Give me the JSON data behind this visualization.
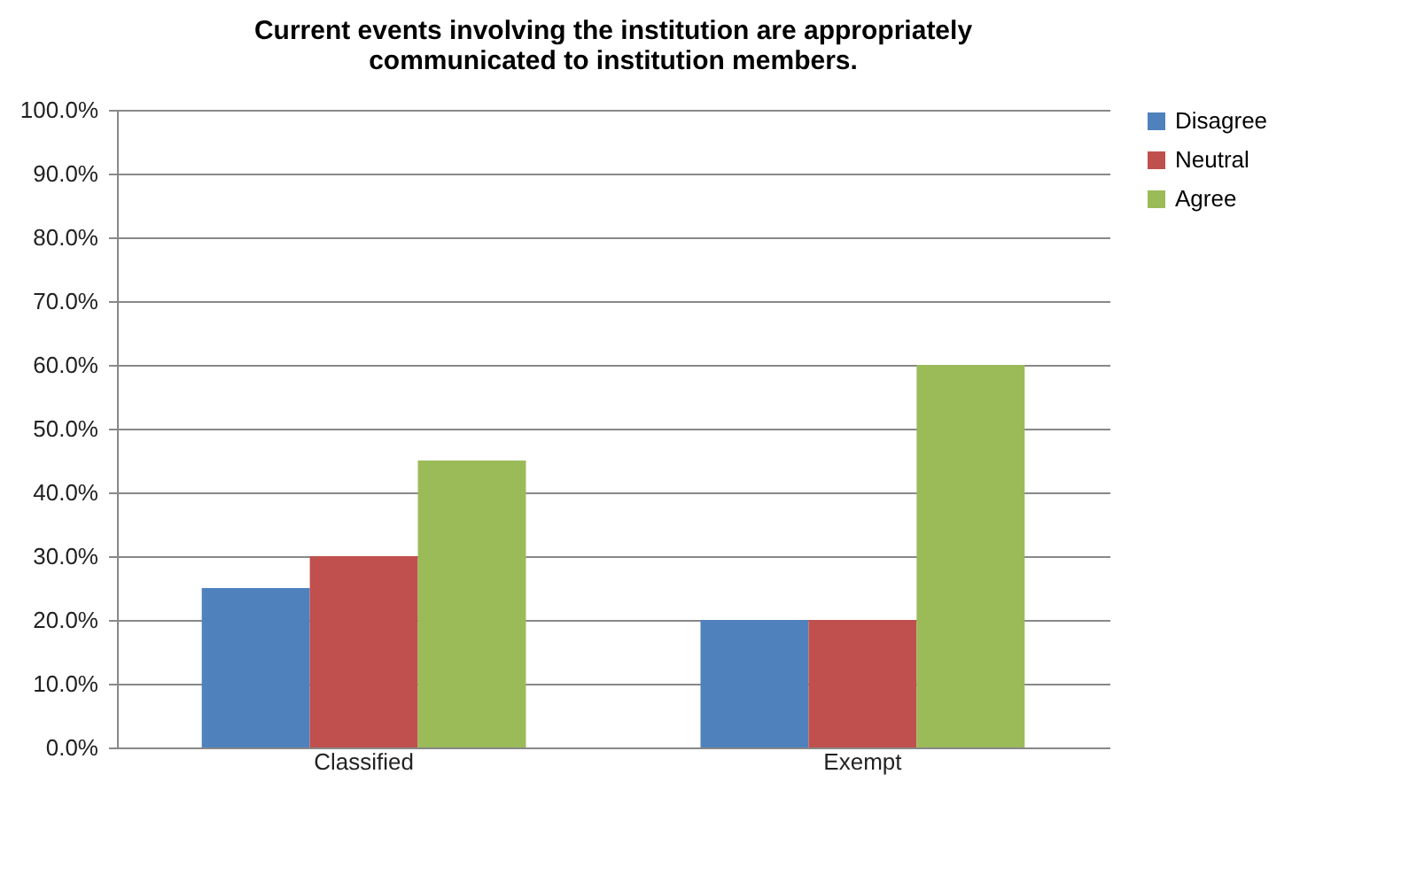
{
  "chart_data": {
    "type": "bar",
    "title": [
      "Current events involving the institution are appropriately",
      "communicated to institution members."
    ],
    "categories": [
      "Classified",
      "Exempt"
    ],
    "series": [
      {
        "name": "Disagree",
        "color": "#4f81bd",
        "values": [
          25,
          20
        ]
      },
      {
        "name": "Neutral",
        "color": "#c0504d",
        "values": [
          30,
          20
        ]
      },
      {
        "name": "Agree",
        "color": "#9bbb59",
        "values": [
          45,
          60
        ]
      }
    ],
    "ylim": [
      0,
      100
    ],
    "yticks": [
      {
        "value": 0,
        "label": "0.0%"
      },
      {
        "value": 10,
        "label": "10.0%"
      },
      {
        "value": 20,
        "label": "20.0%"
      },
      {
        "value": 30,
        "label": "30.0%"
      },
      {
        "value": 40,
        "label": "40.0%"
      },
      {
        "value": 50,
        "label": "50.0%"
      },
      {
        "value": 60,
        "label": "60.0%"
      },
      {
        "value": 70,
        "label": "70.0%"
      },
      {
        "value": 80,
        "label": "80.0%"
      },
      {
        "value": 90,
        "label": "90.0%"
      },
      {
        "value": 100,
        "label": "100.0%"
      }
    ],
    "grid": "y",
    "legend": "right"
  }
}
